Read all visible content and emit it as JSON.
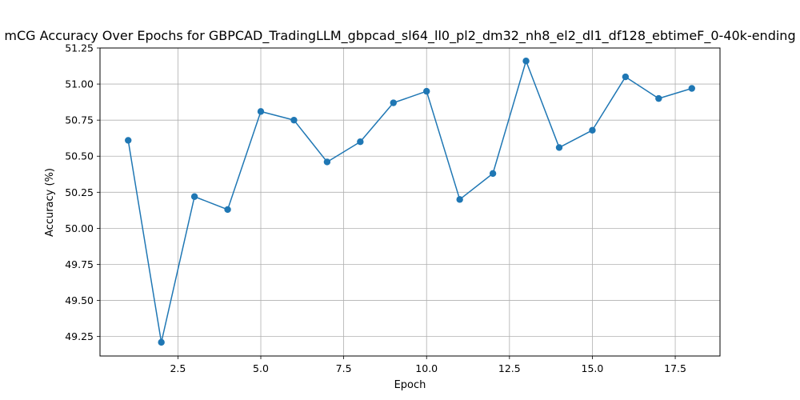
{
  "chart_data": {
    "type": "line",
    "title": "mCG Accuracy Over Epochs for GBPCAD_TradingLLM_gbpcad_sl64_ll0_pl2_dm32_nh8_el2_dl1_df128_ebtimeF_0-40k-ending",
    "xlabel": "Epoch",
    "ylabel": "Accuracy (%)",
    "xlim": [
      0.15,
      18.85
    ],
    "ylim": [
      49.115,
      51.25
    ],
    "x_ticks": [
      2.5,
      5.0,
      7.5,
      10.0,
      12.5,
      15.0,
      17.5
    ],
    "x_tick_labels": [
      "2.5",
      "5.0",
      "7.5",
      "10.0",
      "12.5",
      "15.0",
      "17.5"
    ],
    "y_ticks": [
      49.25,
      49.5,
      49.75,
      50.0,
      50.25,
      50.5,
      50.75,
      51.0,
      51.25
    ],
    "y_tick_labels": [
      "49.25",
      "49.50",
      "49.75",
      "50.00",
      "50.25",
      "50.50",
      "50.75",
      "51.00",
      "51.25"
    ],
    "grid": true,
    "series": [
      {
        "color": "#1f77b4",
        "marker": "circle",
        "x": [
          1,
          2,
          3,
          4,
          5,
          6,
          7,
          8,
          9,
          10,
          11,
          12,
          13,
          14,
          15,
          16,
          17,
          18
        ],
        "values": [
          50.61,
          49.21,
          50.22,
          50.13,
          50.81,
          50.75,
          50.46,
          50.6,
          50.87,
          50.95,
          50.2,
          50.38,
          51.16,
          50.56,
          50.68,
          51.05,
          50.9,
          50.97
        ]
      }
    ]
  }
}
